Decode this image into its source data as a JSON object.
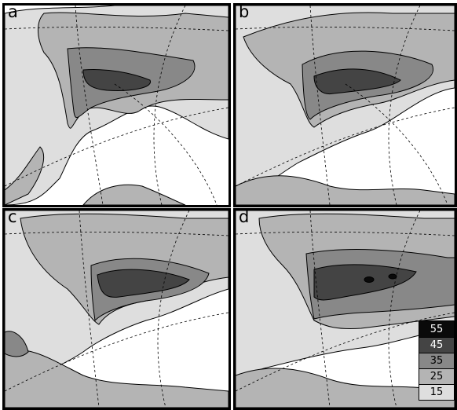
{
  "panels": [
    {
      "id": "a",
      "label": "a"
    },
    {
      "id": "b",
      "label": "b"
    },
    {
      "id": "c",
      "label": "c"
    },
    {
      "id": "d",
      "label": "d"
    }
  ],
  "legend": {
    "items": [
      {
        "value": "55",
        "color": "#0a0a0a",
        "text_color": "#ffffff"
      },
      {
        "value": "45",
        "color": "#444444",
        "text_color": "#ffffff"
      },
      {
        "value": "35",
        "color": "#888888",
        "text_color": "#000000"
      },
      {
        "value": "25",
        "color": "#b4b4b4",
        "text_color": "#000000"
      },
      {
        "value": "15",
        "color": "#dedede",
        "text_color": "#000000"
      }
    ]
  }
}
